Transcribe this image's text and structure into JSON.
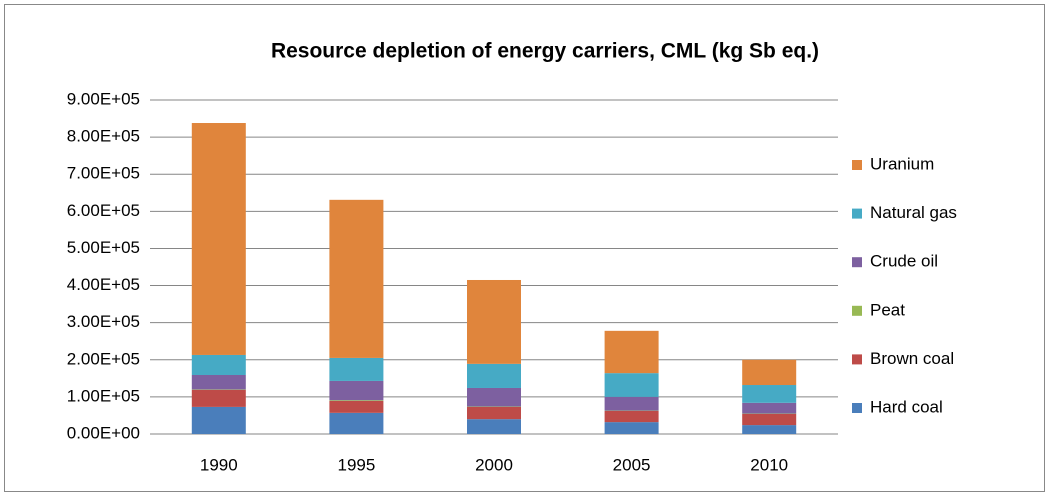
{
  "chart_data": {
    "type": "stacked_bar",
    "title": "Resource depletion of energy carriers, CML (kg Sb eq.)",
    "categories": [
      "1990",
      "1995",
      "2000",
      "2005",
      "2010"
    ],
    "series": [
      {
        "name": "Hard coal",
        "color": "#4a7ebb",
        "values": [
          73000,
          57000,
          40000,
          32000,
          24000
        ]
      },
      {
        "name": "Brown coal",
        "color": "#be4b48",
        "values": [
          46000,
          32000,
          33000,
          30000,
          30000
        ]
      },
      {
        "name": "Peat",
        "color": "#98b954",
        "values": [
          1000,
          2000,
          1000,
          1000,
          1000
        ]
      },
      {
        "name": "Crude oil",
        "color": "#7d60a0",
        "values": [
          39000,
          52000,
          50000,
          37000,
          29000
        ]
      },
      {
        "name": "Natural gas",
        "color": "#46aac5",
        "values": [
          54000,
          62000,
          65000,
          64000,
          48000
        ]
      },
      {
        "name": "Uranium",
        "color": "#e0853c",
        "values": [
          625000,
          426000,
          226000,
          114000,
          68000
        ]
      }
    ],
    "ylim": [
      0,
      900000
    ],
    "yticks": [
      {
        "value": 0,
        "label": "0.00E+00"
      },
      {
        "value": 100000,
        "label": "1.00E+05"
      },
      {
        "value": 200000,
        "label": "2.00E+05"
      },
      {
        "value": 300000,
        "label": "3.00E+05"
      },
      {
        "value": 400000,
        "label": "4.00E+05"
      },
      {
        "value": 500000,
        "label": "5.00E+05"
      },
      {
        "value": 600000,
        "label": "6.00E+05"
      },
      {
        "value": 700000,
        "label": "7.00E+05"
      },
      {
        "value": 800000,
        "label": "8.00E+05"
      },
      {
        "value": 900000,
        "label": "9.00E+05"
      }
    ],
    "grid": true,
    "legend": "right"
  }
}
